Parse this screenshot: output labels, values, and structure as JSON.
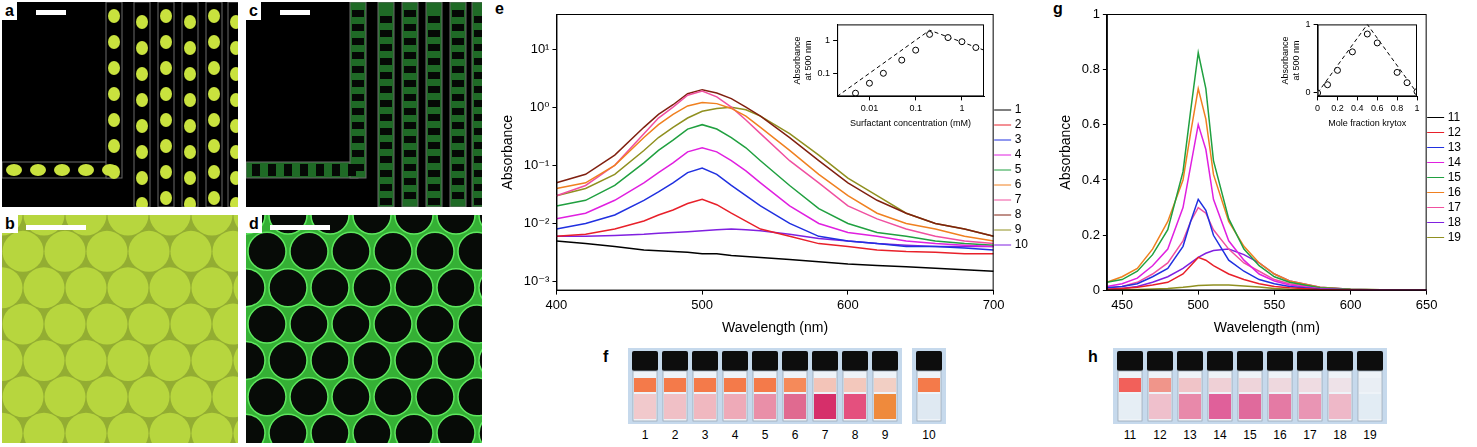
{
  "panel_labels": [
    "a",
    "b",
    "c",
    "d",
    "e",
    "f",
    "g",
    "h"
  ],
  "chart_data": [
    {
      "type": "line",
      "xlabel": "Wavelength (nm)",
      "ylabel": "Absorbance",
      "log": "y",
      "grid": false,
      "legend": "right",
      "xlim": [
        400,
        700
      ],
      "xticks": [
        400,
        500,
        600,
        700
      ],
      "ylim": [
        0.0007,
        40
      ],
      "yticks": [
        {
          "value": 0.001,
          "label": "10⁻³"
        },
        {
          "value": 0.01,
          "label": "10⁻²"
        },
        {
          "value": 0.1,
          "label": "10⁻¹"
        },
        {
          "value": 1,
          "label": "10⁰"
        },
        {
          "value": 10,
          "label": "10¹"
        }
      ],
      "x": [
        400,
        420,
        440,
        460,
        470,
        480,
        490,
        500,
        510,
        520,
        530,
        540,
        560,
        580,
        600,
        620,
        640,
        660,
        680,
        700
      ],
      "series": [
        {
          "name": "1",
          "color": "#000000",
          "values": [
            0.005,
            0.0045,
            0.004,
            0.0035,
            0.0034,
            0.0033,
            0.0032,
            0.003,
            0.003,
            0.0028,
            0.0027,
            0.0026,
            0.0024,
            0.0022,
            0.002,
            0.0019,
            0.0018,
            0.0017,
            0.0016,
            0.0015
          ]
        },
        {
          "name": "2",
          "color": "#e8202a",
          "values": [
            0.006,
            0.0065,
            0.008,
            0.011,
            0.014,
            0.017,
            0.022,
            0.026,
            0.021,
            0.015,
            0.011,
            0.008,
            0.006,
            0.0045,
            0.004,
            0.0035,
            0.0033,
            0.0032,
            0.003,
            0.003
          ]
        },
        {
          "name": "3",
          "color": "#2030e0",
          "values": [
            0.008,
            0.01,
            0.014,
            0.025,
            0.035,
            0.05,
            0.075,
            0.09,
            0.07,
            0.045,
            0.03,
            0.02,
            0.01,
            0.006,
            0.005,
            0.0045,
            0.004,
            0.004,
            0.0038,
            0.0035
          ]
        },
        {
          "name": "4",
          "color": "#e020e0",
          "values": [
            0.012,
            0.015,
            0.025,
            0.05,
            0.075,
            0.11,
            0.17,
            0.2,
            0.17,
            0.12,
            0.08,
            0.05,
            0.02,
            0.01,
            0.007,
            0.006,
            0.005,
            0.0045,
            0.0042,
            0.004
          ]
        },
        {
          "name": "5",
          "color": "#20a040",
          "values": [
            0.02,
            0.025,
            0.045,
            0.11,
            0.18,
            0.27,
            0.42,
            0.5,
            0.42,
            0.3,
            0.2,
            0.12,
            0.045,
            0.018,
            0.01,
            0.007,
            0.006,
            0.005,
            0.0045,
            0.0042
          ]
        },
        {
          "name": "6",
          "color": "#f08020",
          "values": [
            0.04,
            0.05,
            0.1,
            0.3,
            0.5,
            0.75,
            1.05,
            1.2,
            1.15,
            0.95,
            0.7,
            0.45,
            0.18,
            0.07,
            0.03,
            0.015,
            0.01,
            0.008,
            0.006,
            0.005
          ]
        },
        {
          "name": "7",
          "color": "#f050a0",
          "values": [
            0.03,
            0.045,
            0.1,
            0.35,
            0.65,
            1.0,
            1.6,
            1.9,
            1.5,
            1.0,
            0.6,
            0.35,
            0.12,
            0.05,
            0.02,
            0.012,
            0.008,
            0.006,
            0.005,
            0.0045
          ]
        },
        {
          "name": "8",
          "color": "#802010",
          "values": [
            0.05,
            0.07,
            0.15,
            0.45,
            0.75,
            1.1,
            1.7,
            2.0,
            1.75,
            1.4,
            1.0,
            0.7,
            0.3,
            0.12,
            0.05,
            0.025,
            0.015,
            0.01,
            0.008,
            0.006
          ]
        },
        {
          "name": "9",
          "color": "#909020",
          "values": [
            0.03,
            0.04,
            0.07,
            0.18,
            0.3,
            0.45,
            0.65,
            0.85,
            0.95,
            1.0,
            0.9,
            0.7,
            0.35,
            0.15,
            0.06,
            0.03,
            0.015,
            0.01,
            0.008,
            0.006
          ]
        },
        {
          "name": "10",
          "color": "#8020e0",
          "values": [
            0.006,
            0.006,
            0.0062,
            0.0065,
            0.0068,
            0.007,
            0.0072,
            0.0075,
            0.0078,
            0.008,
            0.0078,
            0.0075,
            0.0065,
            0.0055,
            0.005,
            0.0045,
            0.0042,
            0.004,
            0.004,
            0.004
          ]
        }
      ]
    },
    {
      "type": "line",
      "xlabel": "Surfactant concentration (mM)",
      "ylabel": "Absorbance at 500 nm",
      "log": true,
      "grid": false,
      "xlim": [
        0.002,
        3
      ],
      "xticks": [
        0.01,
        0.1,
        1
      ],
      "ylim": [
        0.02,
        3
      ],
      "yticks": [
        0.1,
        1
      ],
      "series": [
        {
          "type": "scatter",
          "marker": "circle",
          "color": "#000000",
          "x": [
            0.005,
            0.01,
            0.02,
            0.05,
            0.1,
            0.2,
            0.5,
            1,
            2
          ],
          "values": [
            0.025,
            0.05,
            0.1,
            0.25,
            0.5,
            1.5,
            1.2,
            0.9,
            0.6
          ]
        },
        {
          "type": "line",
          "line_style": "dashed",
          "color": "#000000",
          "x": [
            0.002,
            0.2,
            3
          ],
          "values": [
            0.02,
            2,
            0.5
          ]
        }
      ]
    },
    {
      "type": "line",
      "xlabel": "Wavelength (nm)",
      "ylabel": "Absorbance",
      "grid": false,
      "legend": "right",
      "xlim": [
        440,
        650
      ],
      "xticks": [
        450,
        500,
        550,
        600,
        650
      ],
      "ylim": [
        0,
        1
      ],
      "yticks": [
        0,
        0.2,
        0.4,
        0.6,
        0.8,
        1
      ],
      "x": [
        440,
        450,
        460,
        470,
        480,
        490,
        495,
        500,
        505,
        510,
        520,
        530,
        540,
        550,
        560,
        580,
        600,
        620,
        650
      ],
      "series": [
        {
          "name": "11",
          "color": "#000000",
          "values": [
            0,
            0,
            0,
            0,
            0,
            0,
            0,
            0,
            0,
            0,
            0,
            0,
            0,
            0,
            0,
            0,
            0,
            0,
            0
          ]
        },
        {
          "name": "12",
          "color": "#e8202a",
          "values": [
            0.005,
            0.008,
            0.012,
            0.02,
            0.03,
            0.06,
            0.09,
            0.12,
            0.11,
            0.09,
            0.06,
            0.04,
            0.025,
            0.015,
            0.01,
            0.004,
            0.002,
            0.001,
            0.001
          ]
        },
        {
          "name": "13",
          "color": "#2030e0",
          "values": [
            0.01,
            0.015,
            0.025,
            0.05,
            0.08,
            0.16,
            0.25,
            0.33,
            0.29,
            0.2,
            0.11,
            0.07,
            0.04,
            0.025,
            0.015,
            0.005,
            0.002,
            0.001,
            0.001
          ]
        },
        {
          "name": "14",
          "color": "#e020e0",
          "values": [
            0.015,
            0.025,
            0.045,
            0.09,
            0.15,
            0.3,
            0.45,
            0.6,
            0.51,
            0.33,
            0.18,
            0.11,
            0.06,
            0.035,
            0.02,
            0.007,
            0.003,
            0.002,
            0.001
          ]
        },
        {
          "name": "15",
          "color": "#20a040",
          "values": [
            0.03,
            0.04,
            0.07,
            0.13,
            0.22,
            0.43,
            0.65,
            0.86,
            0.73,
            0.47,
            0.26,
            0.15,
            0.09,
            0.05,
            0.03,
            0.01,
            0.005,
            0.003,
            0.002
          ]
        },
        {
          "name": "16",
          "color": "#f08020",
          "values": [
            0.03,
            0.05,
            0.08,
            0.15,
            0.25,
            0.4,
            0.57,
            0.73,
            0.62,
            0.42,
            0.25,
            0.16,
            0.1,
            0.06,
            0.035,
            0.012,
            0.005,
            0.003,
            0.002
          ]
        },
        {
          "name": "17",
          "color": "#f050a0",
          "values": [
            0.01,
            0.015,
            0.03,
            0.06,
            0.1,
            0.18,
            0.25,
            0.3,
            0.28,
            0.22,
            0.15,
            0.1,
            0.07,
            0.04,
            0.025,
            0.01,
            0.004,
            0.002,
            0.001
          ]
        },
        {
          "name": "18",
          "color": "#8020e0",
          "values": [
            0.005,
            0.008,
            0.015,
            0.03,
            0.05,
            0.08,
            0.1,
            0.12,
            0.135,
            0.145,
            0.15,
            0.13,
            0.1,
            0.06,
            0.035,
            0.012,
            0.005,
            0.002,
            0.001
          ]
        },
        {
          "name": "19",
          "color": "#909020",
          "values": [
            0.002,
            0.003,
            0.004,
            0.006,
            0.008,
            0.012,
            0.015,
            0.018,
            0.019,
            0.02,
            0.02,
            0.017,
            0.013,
            0.008,
            0.005,
            0.002,
            0.001,
            0.001,
            0
          ]
        }
      ]
    },
    {
      "type": "line",
      "xlabel": "Mole fraction krytox",
      "ylabel": "Absorbance at 500 nm",
      "grid": false,
      "xlim": [
        0,
        1
      ],
      "xticks": [
        0,
        0.2,
        0.4,
        0.6,
        0.8,
        1
      ],
      "ylim": [
        -0.05,
        1
      ],
      "yticks": [
        0,
        1
      ],
      "series": [
        {
          "type": "scatter",
          "marker": "circle",
          "color": "#000000",
          "x": [
            0,
            0.1,
            0.2,
            0.35,
            0.5,
            0.6,
            0.8,
            0.9,
            1
          ],
          "values": [
            0.0,
            0.12,
            0.33,
            0.6,
            0.86,
            0.73,
            0.3,
            0.15,
            0.02
          ]
        },
        {
          "type": "line",
          "line_style": "dashed",
          "color": "#000000",
          "x": [
            0,
            0.5,
            1
          ],
          "values": [
            0,
            1,
            0
          ]
        }
      ]
    }
  ],
  "photos": [
    {
      "groups": [
        [
          "1",
          "2",
          "3",
          "4",
          "5",
          "6",
          "7",
          "8",
          "9"
        ],
        [
          "10"
        ]
      ]
    },
    {
      "groups": [
        [
          "11",
          "12",
          "13",
          "14",
          "15",
          "16",
          "17",
          "18",
          "19"
        ]
      ]
    }
  ]
}
